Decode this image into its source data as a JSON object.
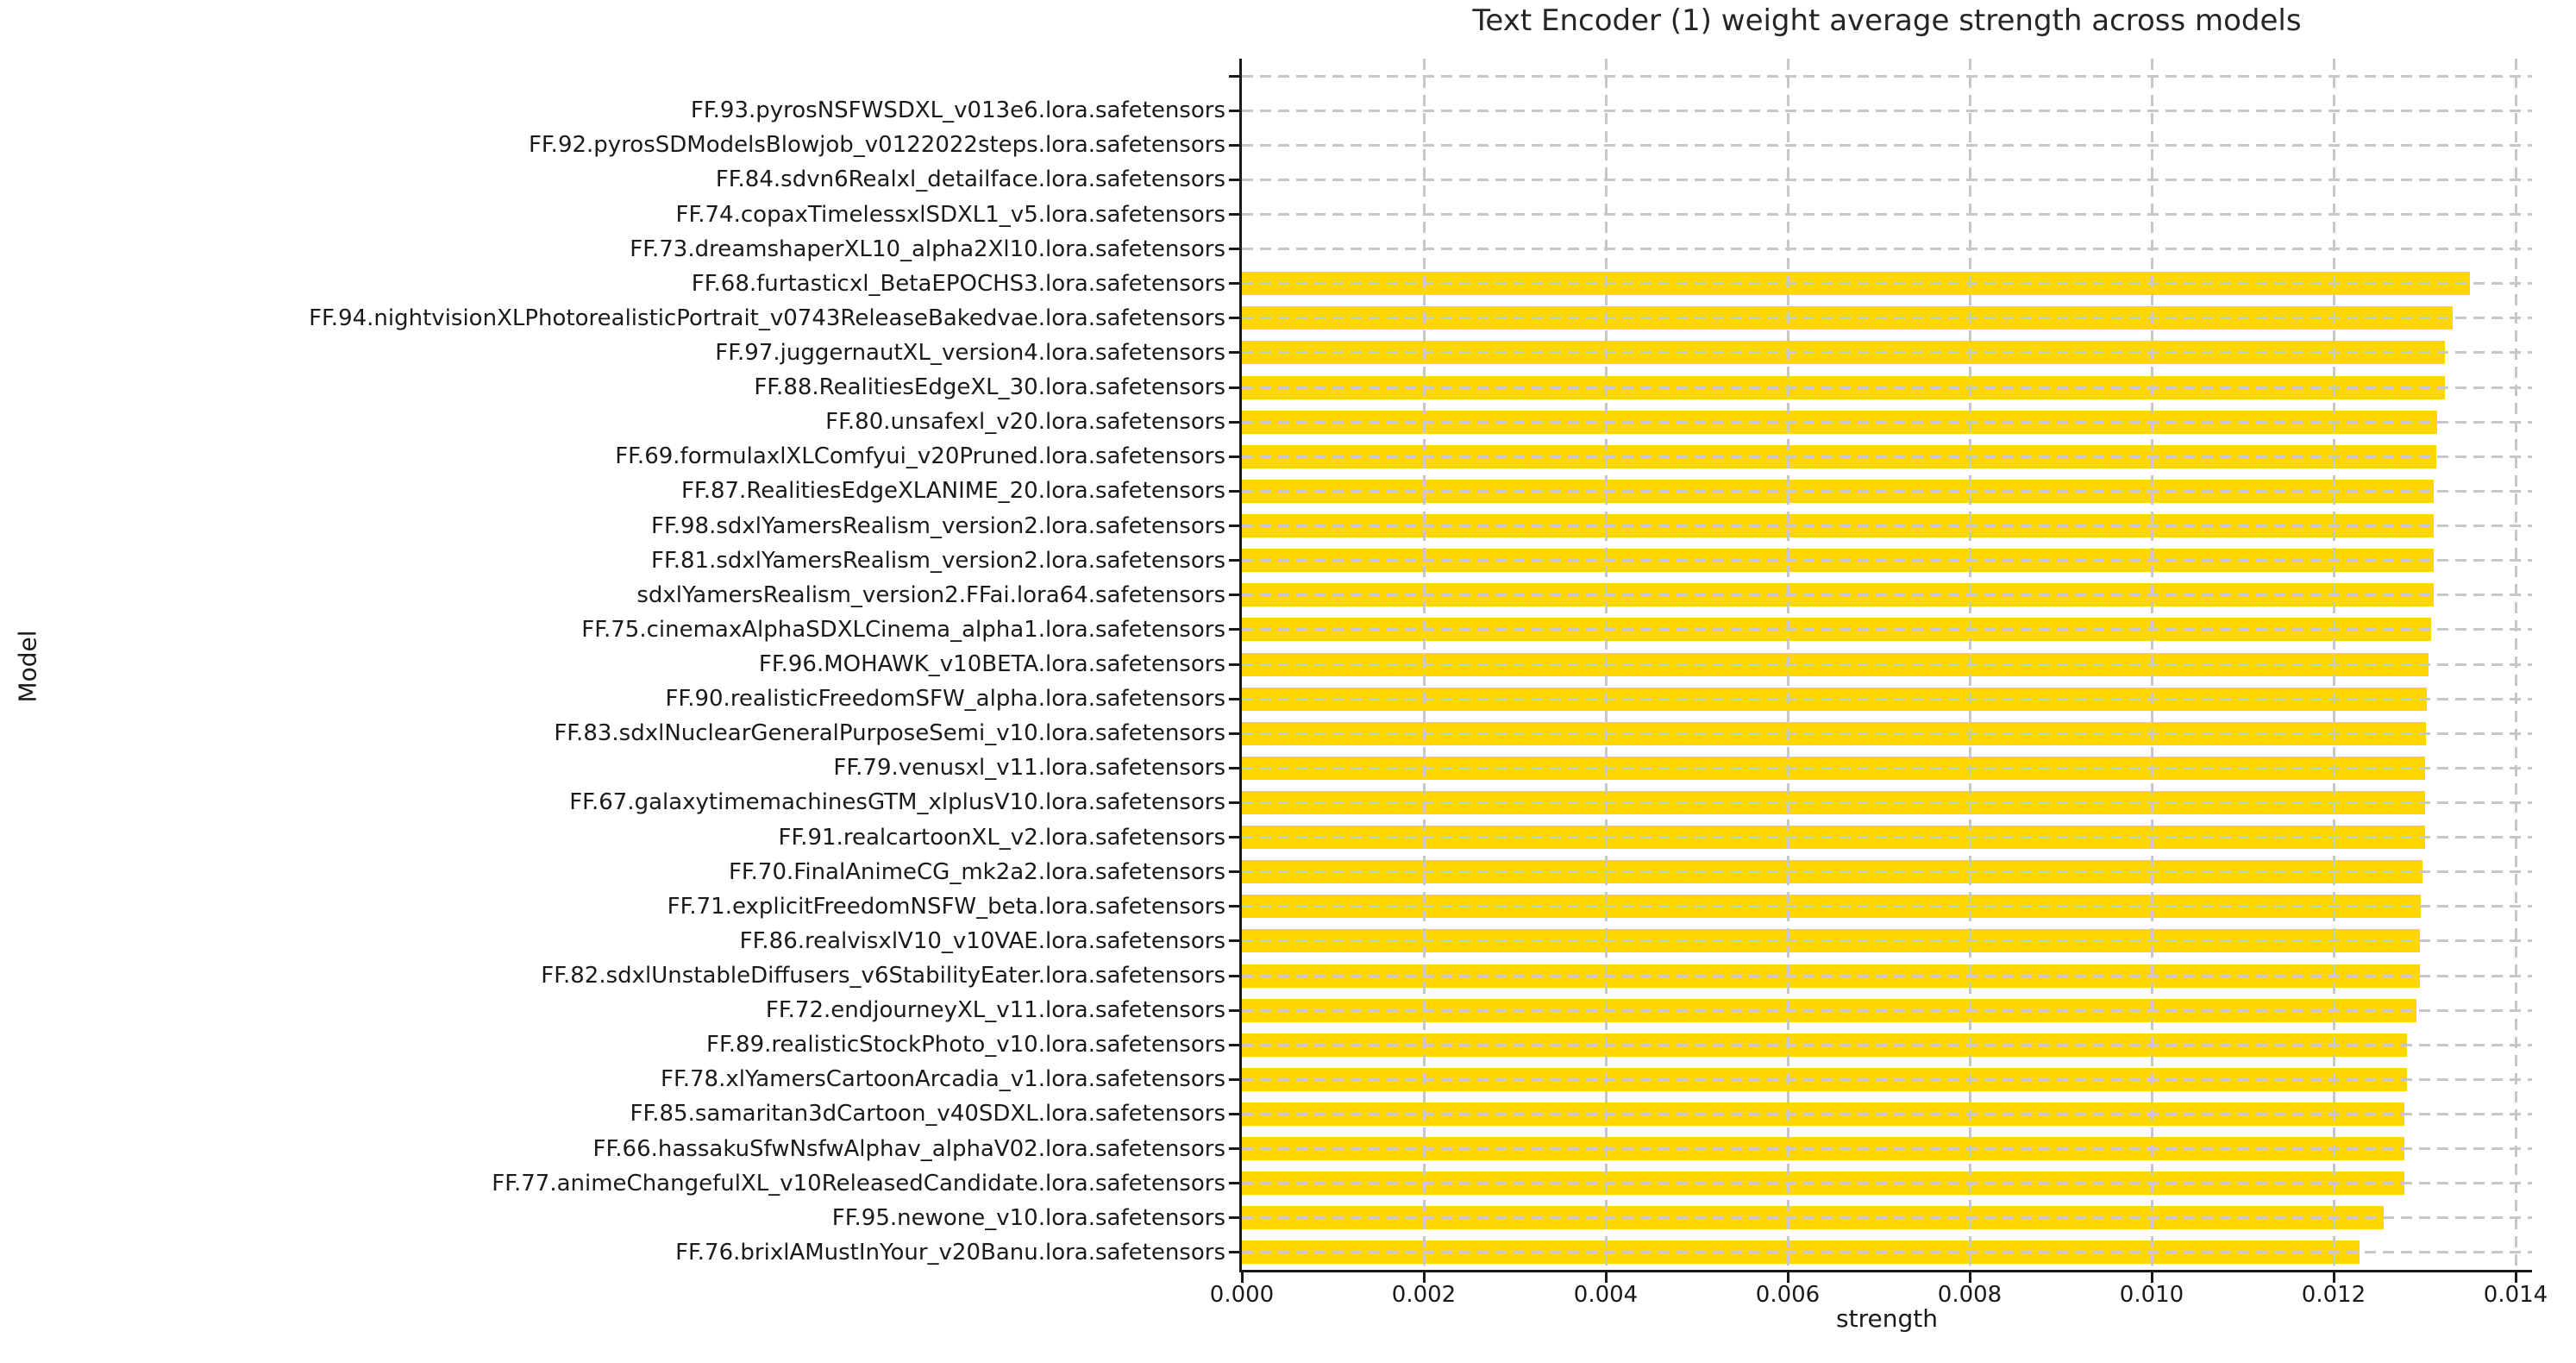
{
  "chart_data": {
    "type": "bar",
    "orientation": "horizontal",
    "title": "Text Encoder (1) weight average strength across models",
    "xlabel": "strength",
    "ylabel": "Model",
    "xlim": [
      0,
      0.01418
    ],
    "x_ticks": [
      0,
      0.002,
      0.004,
      0.006,
      0.008,
      0.01,
      0.012,
      0.014
    ],
    "x_tick_labels": [
      "0.000",
      "0.002",
      "0.004",
      "0.006",
      "0.008",
      "0.010",
      "0.012",
      "0.014"
    ],
    "grid": {
      "visible": true,
      "axis": "both",
      "style": "dashed",
      "drawn_over_bars": true
    },
    "legend": null,
    "bar_color": "#FFD700",
    "categories": [
      "",
      "FF.93.pyrosNSFWSDXL_v013e6.lora.safetensors",
      "FF.92.pyrosSDModelsBlowjob_v0122022steps.lora.safetensors",
      "FF.84.sdvn6Realxl_detailface.lora.safetensors",
      "FF.74.copaxTimelessxlSDXL1_v5.lora.safetensors",
      "FF.73.dreamshaperXL10_alpha2Xl10.lora.safetensors",
      "FF.68.furtasticxl_BetaEPOCHS3.lora.safetensors",
      "FF.94.nightvisionXLPhotorealisticPortrait_v0743ReleaseBakedvae.lora.safetensors",
      "FF.97.juggernautXL_version4.lora.safetensors",
      "FF.88.RealitiesEdgeXL_30.lora.safetensors",
      "FF.80.unsafexl_v20.lora.safetensors",
      "FF.69.formulaxlXLComfyui_v20Pruned.lora.safetensors",
      "FF.87.RealitiesEdgeXLANIME_20.lora.safetensors",
      "FF.98.sdxlYamersRealism_version2.lora.safetensors",
      "FF.81.sdxlYamersRealism_version2.lora.safetensors",
      "sdxlYamersRealism_version2.FFai.lora64.safetensors",
      "FF.75.cinemaxAlphaSDXLCinema_alpha1.lora.safetensors",
      "FF.96.MOHAWK_v10BETA.lora.safetensors",
      "FF.90.realisticFreedomSFW_alpha.lora.safetensors",
      "FF.83.sdxlNuclearGeneralPurposeSemi_v10.lora.safetensors",
      "FF.79.venusxl_v11.lora.safetensors",
      "FF.67.galaxytimemachinesGTM_xlplusV10.lora.safetensors",
      "FF.91.realcartoonXL_v2.lora.safetensors",
      "FF.70.FinalAnimeCG_mk2a2.lora.safetensors",
      "FF.71.explicitFreedomNSFW_beta.lora.safetensors",
      "FF.86.realvisxlV10_v10VAE.lora.safetensors",
      "FF.82.sdxlUnstableDiffusers_v6StabilityEater.lora.safetensors",
      "FF.72.endjourneyXL_v11.lora.safetensors",
      "FF.89.realisticStockPhoto_v10.lora.safetensors",
      "FF.78.xlYamersCartoonArcadia_v1.lora.safetensors",
      "FF.85.samaritan3dCartoon_v40SDXL.lora.safetensors",
      "FF.66.hassakuSfwNsfwAlphav_alphaV02.lora.safetensors",
      "FF.77.animeChangefulXL_v10ReleasedCandidate.lora.safetensors",
      "FF.95.newone_v10.lora.safetensors",
      "FF.76.brixlAMustInYour_v20Banu.lora.safetensors"
    ],
    "values": [
      0,
      0,
      0,
      0,
      0,
      0,
      0.0135,
      0.01331,
      0.01322,
      0.01322,
      0.01314,
      0.01313,
      0.0131,
      0.0131,
      0.0131,
      0.0131,
      0.01307,
      0.01304,
      0.01302,
      0.01301,
      0.013,
      0.013,
      0.013,
      0.01298,
      0.01296,
      0.01295,
      0.01295,
      0.01291,
      0.01281,
      0.01281,
      0.01278,
      0.01278,
      0.01278,
      0.01255,
      0.01228
    ]
  },
  "colors": {
    "background": "#ffffff",
    "bar": "#FFD700",
    "grid": "#c7c7c7",
    "text": "#1a1a1a",
    "title_text": "#262626",
    "spine": "#1a1a1a"
  }
}
